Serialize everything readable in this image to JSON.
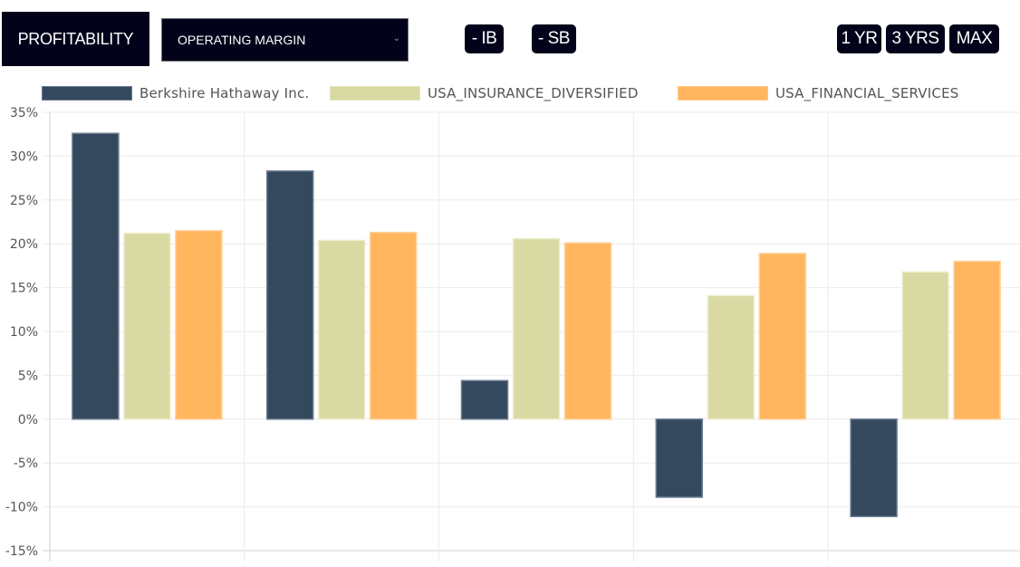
{
  "toolbar": {
    "category_label": "PROFITABILITY",
    "metric_select": {
      "selected": "OPERATING MARGIN",
      "chevron_icon": "chevron-down-icon"
    },
    "toggle_ib_label": "- IB",
    "toggle_sb_label": "- SB",
    "range_buttons": [
      "1 YR",
      "3 YRS",
      "MAX"
    ]
  },
  "colors": {
    "company": "#34495e",
    "insurance": "#d9d9a3",
    "financial": "#ffb65e",
    "dark_button": "#02021a"
  },
  "chart_data": {
    "type": "bar",
    "title": "",
    "xlabel": "",
    "ylabel": "",
    "categories": [
      "",
      "",
      "",
      "",
      ""
    ],
    "categories_note": "x-axis tick labels are clipped at the bottom edge and unreadable",
    "series": [
      {
        "name": "Berkshire Hathaway Inc.",
        "color": "#34495e",
        "values": [
          32.6,
          28.3,
          4.4,
          -8.9,
          -11.1
        ]
      },
      {
        "name": "USA_INSURANCE_DIVERSIFIED",
        "color": "#d9d9a3",
        "values": [
          21.2,
          20.4,
          20.6,
          14.1,
          16.8
        ]
      },
      {
        "name": "USA_FINANCIAL_SERVICES",
        "color": "#ffb65e",
        "values": [
          21.5,
          21.3,
          20.1,
          18.9,
          18.0
        ]
      }
    ],
    "ylim": [
      -15,
      35
    ],
    "yticks": [
      35,
      30,
      25,
      20,
      15,
      10,
      5,
      0,
      -5,
      -10,
      -15
    ],
    "ytick_labels": [
      "35%",
      "30%",
      "25%",
      "20%",
      "15%",
      "10%",
      "5%",
      "0%",
      "-5%",
      "-10%",
      "-15%"
    ],
    "grid": true,
    "legend_position": "top"
  }
}
